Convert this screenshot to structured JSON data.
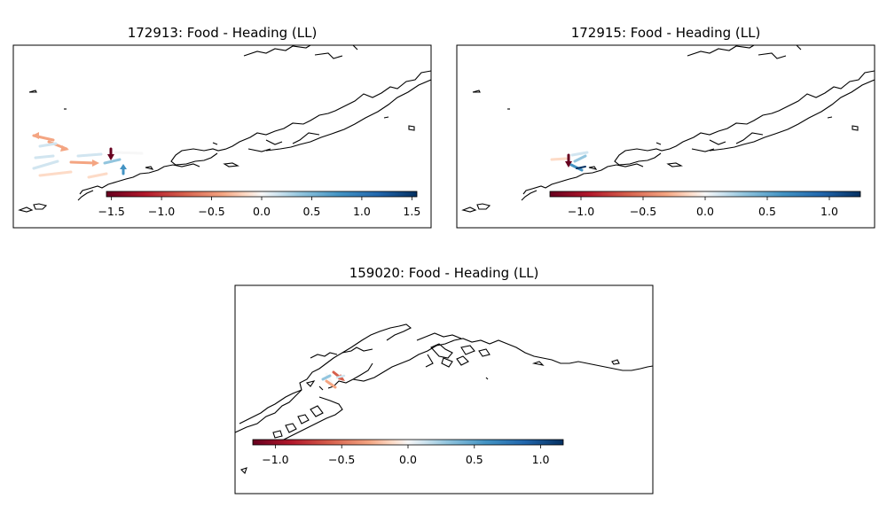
{
  "figure": {
    "panels": [
      {
        "title": "172913: Food - Heading (LL)",
        "colorbar": {
          "cmap": "RdBu",
          "ticks": [
            "−1.5",
            "−1.0",
            "−0.5",
            "0.0",
            "0.5",
            "1.0",
            "1.5"
          ],
          "vmin": -1.55,
          "vmax": 1.55
        }
      },
      {
        "title": "172915: Food - Heading (LL)",
        "colorbar": {
          "cmap": "RdBu",
          "ticks": [
            "−1.0",
            "−0.5",
            "0.0",
            "0.5",
            "1.0"
          ],
          "vmin": -1.25,
          "vmax": 1.25
        }
      },
      {
        "title": "159020: Food - Heading (LL)",
        "colorbar": {
          "cmap": "RdBu",
          "ticks": [
            "−1.0",
            "−0.5",
            "0.0",
            "0.5",
            "1.0"
          ],
          "vmin": -1.17,
          "vmax": 1.17
        }
      }
    ],
    "colors": {
      "strong_red": "#67001f",
      "red": "#d6604d",
      "light_red": "#f4a582",
      "pale": "#fddbc7",
      "white": "#f7f7f7",
      "pale_blue": "#d1e5f0",
      "light_blue": "#92c5de",
      "blue": "#4393c3",
      "strong_blue": "#053061",
      "coast": "#000000"
    }
  }
}
